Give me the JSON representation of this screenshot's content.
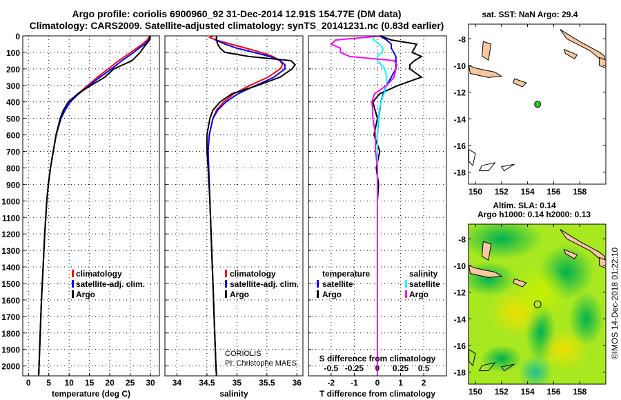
{
  "title": {
    "line1": "Argo profile: coriolis 6900960_92 31-Dec-2014 12.91S 154.77E (DM data)",
    "line2": "Climatology: CARS2009. Satellite-adjusted climatology: synTS_20141231.nc (0.83d earlier)"
  },
  "colors": {
    "climatology": "#ff0000",
    "satellite": "#0000ff",
    "argo": "#000000",
    "sal_satellite": "#00ffff",
    "sal_argo": "#ff00ff",
    "land": "#f5c8a0",
    "float_dot": "#22cc22"
  },
  "chart_data": [
    {
      "type": "line",
      "id": "temperature",
      "xlabel": "temperature (deg C)",
      "ylabel": "",
      "xlim": [
        -1.4,
        32.2
      ],
      "ylim": [
        0,
        2060
      ],
      "y_reversed": true,
      "grid": true,
      "xticks": [
        0,
        5,
        10,
        15,
        20,
        25,
        30
      ],
      "yticks": [
        0,
        100,
        200,
        300,
        400,
        500,
        600,
        700,
        800,
        900,
        1000,
        1100,
        1200,
        1300,
        1400,
        1500,
        1600,
        1700,
        1800,
        1900,
        2000
      ],
      "legend": [
        "climatology",
        "satellite-adj. clim.",
        "Argo"
      ],
      "legend_placement": "lower-center",
      "depth": [
        0,
        25,
        50,
        75,
        100,
        150,
        200,
        250,
        300,
        350,
        400,
        450,
        500,
        600,
        700,
        800,
        900,
        1000,
        1200,
        1400,
        1600,
        1800,
        2000,
        2060
      ],
      "series": [
        {
          "name": "climatology",
          "color": "#ff0000",
          "values": [
            29.9,
            29.2,
            28.0,
            26.6,
            25.2,
            22.2,
            19.6,
            17.0,
            14.6,
            12.2,
            10.2,
            9.0,
            8.0,
            6.8,
            6.1,
            5.4,
            4.9,
            4.5,
            4.0,
            3.6,
            3.2,
            2.9,
            2.6,
            2.5
          ]
        },
        {
          "name": "satellite-adj. clim.",
          "color": "#0000ff",
          "values": [
            30.0,
            29.6,
            28.6,
            27.2,
            25.9,
            23.0,
            20.4,
            17.6,
            15.0,
            12.4,
            10.3,
            9.0,
            8.0,
            6.8,
            6.1,
            5.4,
            4.9,
            4.5,
            4.0,
            3.6,
            3.2,
            2.9,
            2.6,
            2.5
          ]
        },
        {
          "name": "Argo",
          "color": "#000000",
          "values": [
            30.0,
            29.8,
            29.0,
            28.2,
            27.5,
            25.5,
            21.0,
            18.8,
            15.4,
            12.2,
            9.8,
            8.6,
            7.8,
            6.8,
            6.1,
            5.4,
            4.9,
            4.5,
            4.0,
            3.6,
            3.2,
            2.9,
            2.6,
            2.5
          ]
        }
      ]
    },
    {
      "type": "line",
      "id": "salinity",
      "xlabel": "salinity",
      "xlim": [
        33.8,
        36.1
      ],
      "ylim": [
        0,
        2060
      ],
      "y_reversed": true,
      "grid": true,
      "xticks": [
        34,
        34.5,
        35,
        35.5,
        36
      ],
      "legend": [
        "climatology",
        "satellite-adj. clim.",
        "Argo"
      ],
      "legend_placement": "lower-right",
      "annotation": [
        "CORIOLIS",
        "PI: Christophe MAES"
      ],
      "depth": [
        0,
        10,
        25,
        50,
        75,
        100,
        125,
        150,
        175,
        200,
        250,
        300,
        350,
        400,
        450,
        500,
        600,
        700,
        800,
        1000,
        1500,
        2000,
        2060
      ],
      "series": [
        {
          "name": "climatology",
          "color": "#ff0000",
          "values": [
            34.6,
            34.55,
            34.65,
            34.9,
            35.15,
            35.4,
            35.6,
            35.72,
            35.76,
            35.72,
            35.52,
            35.22,
            34.95,
            34.78,
            34.66,
            34.6,
            34.54,
            34.52,
            34.53,
            34.55,
            34.6,
            34.65,
            34.66
          ]
        },
        {
          "name": "satellite-adj. clim.",
          "color": "#0000ff",
          "values": [
            34.66,
            34.66,
            34.65,
            34.8,
            35.0,
            35.28,
            35.55,
            35.72,
            35.8,
            35.8,
            35.62,
            35.32,
            35.02,
            34.82,
            34.68,
            34.6,
            34.54,
            34.52,
            34.53,
            34.55,
            34.6,
            34.65,
            34.66
          ]
        },
        {
          "name": "Argo",
          "color": "#000000",
          "values": [
            34.66,
            34.66,
            34.66,
            34.68,
            34.72,
            34.8,
            35.2,
            35.9,
            35.97,
            35.92,
            35.72,
            35.35,
            34.92,
            34.72,
            34.6,
            34.55,
            34.5,
            34.5,
            34.52,
            34.55,
            34.6,
            34.65,
            34.66
          ]
        }
      ]
    },
    {
      "type": "line",
      "id": "difference",
      "xlabel": "T difference from climatology",
      "x2label": "S difference from climatology",
      "xlim": [
        -2.98,
        2.98
      ],
      "x2lim": [
        -0.745,
        0.745
      ],
      "ylim": [
        0,
        2060
      ],
      "y_reversed": true,
      "grid": true,
      "xticks": [
        -2,
        -1,
        0,
        1,
        2
      ],
      "x2ticks": [
        -0.5,
        -0.25,
        0,
        0.25,
        0.5
      ],
      "legend_left_title": "temperature",
      "legend_right_title": "salinity",
      "legend_left": [
        "satellite",
        "Argo"
      ],
      "legend_right": [
        "satellite",
        "Argo"
      ],
      "depth": [
        0,
        25,
        50,
        75,
        100,
        125,
        150,
        175,
        200,
        250,
        300,
        350,
        400,
        450,
        500,
        600,
        700,
        800,
        900,
        1000,
        1500,
        2000,
        2060
      ],
      "series": [
        {
          "name": "T satellite",
          "axis": "T",
          "color": "#0000ff",
          "values": [
            0.1,
            0.4,
            0.6,
            0.6,
            0.7,
            0.8,
            0.8,
            0.8,
            0.8,
            0.6,
            0.4,
            0.25,
            0.15,
            0.1,
            0.05,
            0.0,
            0.0,
            0.0,
            0.0,
            0.0,
            0.0,
            0.0,
            0.0
          ]
        },
        {
          "name": "T Argo",
          "axis": "T",
          "color": "#000000",
          "values": [
            0.1,
            0.6,
            1.7,
            1.6,
            1.5,
            1.9,
            1.6,
            1.4,
            1.4,
            1.9,
            0.9,
            0.1,
            -0.2,
            -0.1,
            0.0,
            -0.15,
            0.1,
            -0.05,
            0.05,
            0.0,
            0.0,
            0.0,
            0.0
          ]
        },
        {
          "name": "S satellite",
          "axis": "S",
          "color": "#00ffff",
          "values": [
            -0.04,
            -0.04,
            0.02,
            0.06,
            0.05,
            0.0,
            0.0,
            0.04,
            0.08,
            0.1,
            0.1,
            0.07,
            0.04,
            0.02,
            0.01,
            0.0,
            0.0,
            0.0,
            0.0,
            0.0,
            0.0,
            0.0,
            0.0
          ]
        },
        {
          "name": "S Argo",
          "axis": "S",
          "color": "#ff00ff",
          "values": [
            0.05,
            -0.45,
            -0.5,
            -0.4,
            -0.4,
            -0.3,
            0.18,
            0.21,
            0.2,
            0.18,
            0.1,
            -0.03,
            -0.06,
            -0.05,
            -0.05,
            -0.02,
            -0.02,
            0.0,
            0.0,
            0.0,
            0.0,
            0.0,
            0.0
          ]
        }
      ]
    }
  ],
  "maps": {
    "sst": {
      "title": "sat. SST: NaN Argo: 29.4",
      "xticks": [
        150,
        152,
        154,
        156,
        158
      ],
      "yticks": [
        -8,
        -10,
        -12,
        -14,
        -16,
        -18
      ],
      "lon_range": [
        149.47,
        160.0
      ],
      "lat_range": [
        -18.9,
        -6.9
      ],
      "float": {
        "lon": 154.77,
        "lat": -12.91
      }
    },
    "sla": {
      "title1": "Altim. SLA: 0.14",
      "title2": "Argo h1000: 0.14 h2000: 0.13",
      "xticks": [
        150,
        152,
        154,
        156,
        158
      ],
      "yticks": [
        -8,
        -10,
        -12,
        -14,
        -16,
        -18
      ],
      "lon_range": [
        149.47,
        160.0
      ],
      "lat_range": [
        -18.9,
        -6.9
      ],
      "float": {
        "lon": 154.77,
        "lat": -12.91
      }
    },
    "credit": "©IMOS 14-Dec-2018 01:22:10"
  }
}
